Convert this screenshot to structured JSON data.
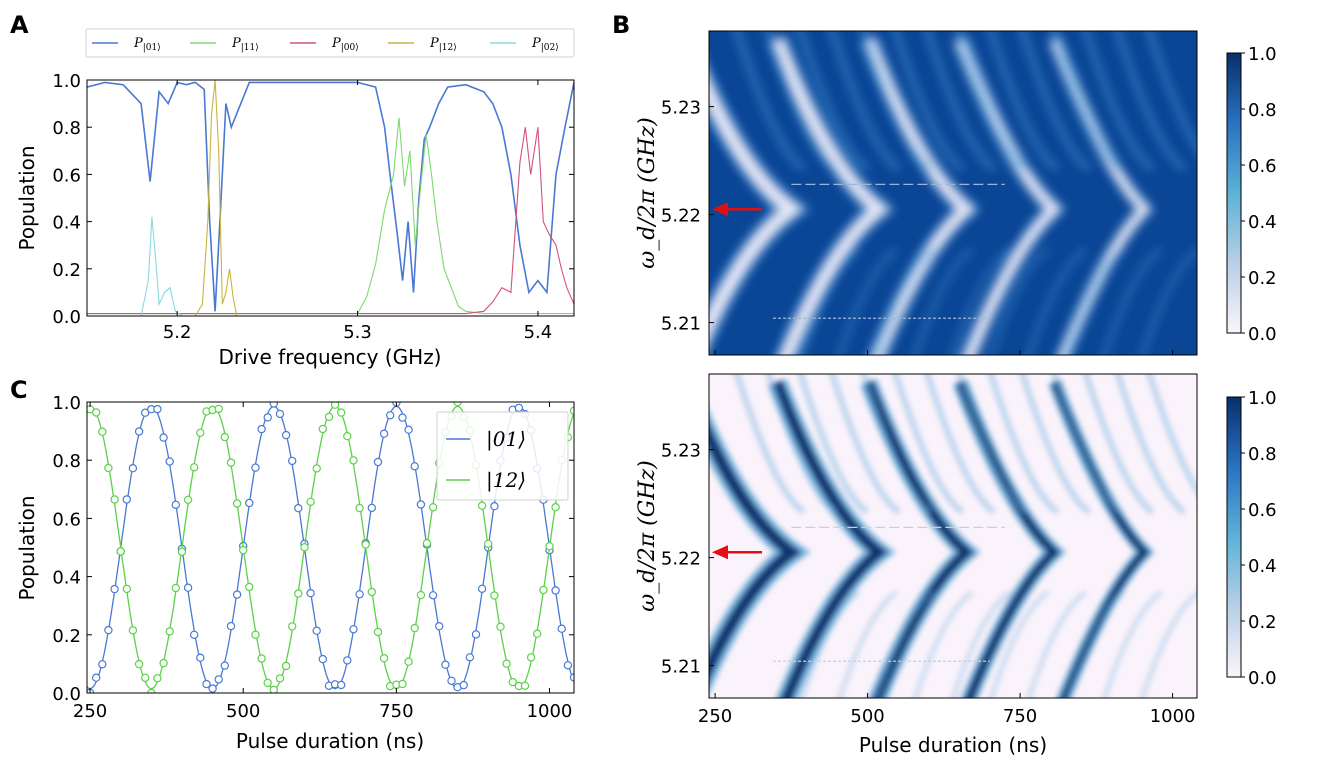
{
  "panels": {
    "a": "A",
    "b": "B",
    "c": "C"
  },
  "colors": {
    "p01": "#4a78d4",
    "p11": "#7ed870",
    "p00": "#d4507a",
    "p12": "#c8b440",
    "p02": "#8ad8e0",
    "c01": "#4a78d4",
    "c12": "#5cd04a",
    "arrow": "#e01010"
  },
  "chart_data": [
    {
      "id": "A",
      "type": "line",
      "xlabel": "Drive frequency (GHz)",
      "ylabel": "Population",
      "xlim": [
        5.15,
        5.42
      ],
      "ylim": [
        0,
        1.0
      ],
      "xticks": [
        "5.2",
        "5.3",
        "5.4"
      ],
      "yticks": [
        "0.0",
        "0.2",
        "0.4",
        "0.6",
        "0.8",
        "1.0"
      ],
      "legend_position": "top",
      "series": [
        {
          "name": "P|01⟩",
          "label_main": "P",
          "label_sub": "|01⟩",
          "color": "#4a78d4",
          "x": [
            5.15,
            5.16,
            5.17,
            5.18,
            5.185,
            5.19,
            5.195,
            5.2,
            5.205,
            5.21,
            5.215,
            5.218,
            5.221,
            5.224,
            5.227,
            5.23,
            5.24,
            5.26,
            5.28,
            5.3,
            5.31,
            5.315,
            5.318,
            5.322,
            5.325,
            5.328,
            5.331,
            5.334,
            5.337,
            5.34,
            5.345,
            5.35,
            5.36,
            5.37,
            5.375,
            5.38,
            5.385,
            5.39,
            5.395,
            5.4,
            5.405,
            5.41,
            5.415,
            5.42
          ],
          "y": [
            0.97,
            0.99,
            0.98,
            0.9,
            0.57,
            0.95,
            0.9,
            0.99,
            0.98,
            0.99,
            0.96,
            0.4,
            0.02,
            0.45,
            0.9,
            0.8,
            0.99,
            0.99,
            0.99,
            0.99,
            0.97,
            0.8,
            0.6,
            0.35,
            0.15,
            0.4,
            0.1,
            0.5,
            0.75,
            0.8,
            0.9,
            0.97,
            0.98,
            0.95,
            0.9,
            0.8,
            0.6,
            0.3,
            0.1,
            0.15,
            0.1,
            0.6,
            0.8,
            0.99
          ]
        },
        {
          "name": "P|11⟩",
          "label_main": "P",
          "label_sub": "|11⟩",
          "color": "#7ed870",
          "x": [
            5.15,
            5.3,
            5.305,
            5.31,
            5.315,
            5.32,
            5.323,
            5.326,
            5.329,
            5.332,
            5.335,
            5.338,
            5.341,
            5.344,
            5.348,
            5.352,
            5.356,
            5.36,
            5.37,
            5.42
          ],
          "y": [
            0.01,
            0.01,
            0.08,
            0.22,
            0.45,
            0.6,
            0.84,
            0.55,
            0.7,
            0.3,
            0.55,
            0.77,
            0.6,
            0.4,
            0.2,
            0.12,
            0.04,
            0.02,
            0.01,
            0.01
          ]
        },
        {
          "name": "P|00⟩",
          "label_main": "P",
          "label_sub": "|00⟩",
          "color": "#d4507a",
          "x": [
            5.15,
            5.36,
            5.37,
            5.375,
            5.38,
            5.385,
            5.39,
            5.393,
            5.396,
            5.4,
            5.403,
            5.406,
            5.41,
            5.413,
            5.416,
            5.42
          ],
          "y": [
            0.01,
            0.01,
            0.02,
            0.06,
            0.12,
            0.1,
            0.65,
            0.8,
            0.6,
            0.8,
            0.4,
            0.35,
            0.3,
            0.2,
            0.12,
            0.05
          ]
        },
        {
          "name": "P|12⟩",
          "label_main": "P",
          "label_sub": "|12⟩",
          "color": "#c8b440",
          "x": [
            5.15,
            5.21,
            5.214,
            5.217,
            5.219,
            5.221,
            5.223,
            5.225,
            5.227,
            5.229,
            5.231,
            5.233,
            5.24,
            5.42
          ],
          "y": [
            0.0,
            0.0,
            0.05,
            0.4,
            0.85,
            1.0,
            0.7,
            0.05,
            0.1,
            0.2,
            0.08,
            0.0,
            0.0,
            0.0
          ]
        },
        {
          "name": "P|02⟩",
          "label_main": "P",
          "label_sub": "|02⟩",
          "color": "#8ad8e0",
          "x": [
            5.15,
            5.18,
            5.184,
            5.186,
            5.188,
            5.19,
            5.193,
            5.196,
            5.199,
            5.203,
            5.42
          ],
          "y": [
            0.0,
            0.0,
            0.15,
            0.42,
            0.25,
            0.05,
            0.1,
            0.12,
            0.02,
            0.0,
            0.0
          ]
        }
      ]
    },
    {
      "id": "B-top",
      "type": "heatmap",
      "xlabel": "",
      "ylabel": "ω_d/2π (GHz)",
      "xlim": [
        240,
        1040
      ],
      "ylim": [
        5.207,
        5.237
      ],
      "xticks": [],
      "yticks": [
        "5.21",
        "5.22",
        "5.23"
      ],
      "colorbar_ticks": [
        "0.0",
        "0.2",
        "0.4",
        "0.6",
        "0.8",
        "1.0"
      ],
      "colorscale": "blues",
      "arrow_y": 5.2205,
      "dashed_lines": [
        {
          "x": [
            375,
            725
          ],
          "y": 5.2228
        },
        {
          "x": [
            345,
            700
          ],
          "y": 5.2104
        }
      ]
    },
    {
      "id": "B-bottom",
      "type": "heatmap",
      "xlabel": "Pulse duration (ns)",
      "ylabel": "ω_d/2π (GHz)",
      "xlim": [
        240,
        1040
      ],
      "ylim": [
        5.207,
        5.237
      ],
      "xticks": [
        "250",
        "500",
        "750",
        "1000"
      ],
      "yticks": [
        "5.21",
        "5.22",
        "5.23"
      ],
      "colorbar_ticks": [
        "0.0",
        "0.2",
        "0.4",
        "0.6",
        "0.8",
        "1.0"
      ],
      "colorscale": "blues",
      "arrow_y": 5.2205,
      "dashed_lines": [
        {
          "x": [
            375,
            725
          ],
          "y": 5.2228
        },
        {
          "x": [
            345,
            700
          ],
          "y": 5.2104
        }
      ]
    },
    {
      "id": "C",
      "type": "line",
      "xlabel": "Pulse duration (ns)",
      "ylabel": "Population",
      "xlim": [
        245,
        1040
      ],
      "ylim": [
        0,
        1.0
      ],
      "xticks": [
        "250",
        "500",
        "750",
        "1000"
      ],
      "yticks": [
        "0.0",
        "0.2",
        "0.4",
        "0.6",
        "0.8",
        "1.0"
      ],
      "legend_position": "top-right",
      "period_ns": 200,
      "series": [
        {
          "name": "|01⟩",
          "color": "#4a78d4",
          "amplitude": 0.485,
          "offset": 0.5,
          "peak_at": 350
        },
        {
          "name": "|12⟩",
          "color": "#5cd04a",
          "amplitude": 0.485,
          "offset": 0.5,
          "peak_at": 250
        }
      ],
      "markers_step_ns": 10
    }
  ]
}
